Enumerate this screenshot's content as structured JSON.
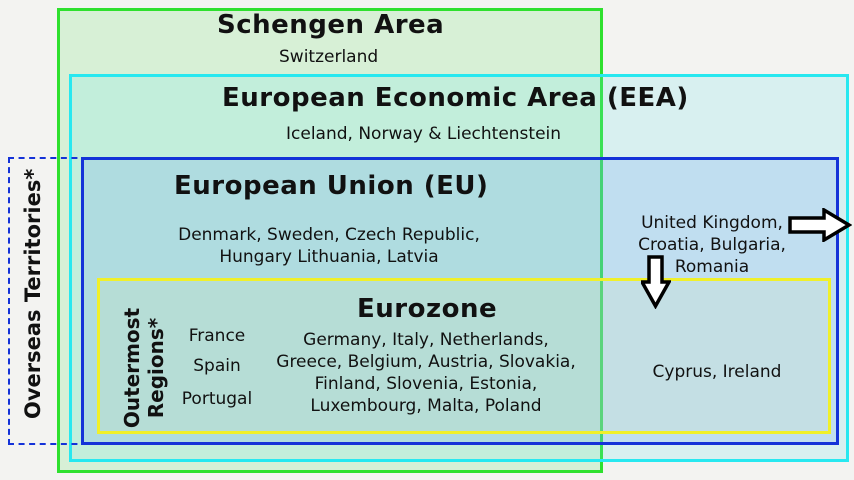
{
  "schengen": {
    "title": "Schengen Area",
    "members": "Switzerland",
    "color": "#2ee02e"
  },
  "eea": {
    "title": "European Economic Area (EEA)",
    "members": "Iceland, Norway & Liechtenstein",
    "color": "#27e8f0"
  },
  "eu": {
    "title": "European Union (EU)",
    "members_line1": "Denmark, Sweden, Czech Republic,",
    "members_line2": "Hungary Lithuania, Latvia",
    "non_schengen_line1": "United Kingdom,",
    "non_schengen_line2": "Croatia, Bulgaria,",
    "non_schengen_line3": "Romania",
    "color": "#1432d8"
  },
  "eurozone": {
    "title": "Eurozone",
    "members_line1": "Germany, Italy, Netherlands,",
    "members_line2": "Greece, Belgium, Austria, Slovakia,",
    "members_line3": "Finland, Slovenia, Estonia,",
    "members_line4": "Luxembourg, Malta, Poland",
    "non_schengen": "Cyprus, Ireland",
    "color": "#f0f02a"
  },
  "outermost": {
    "label_line1": "Outermost",
    "label_line2": "Regions*",
    "countries": [
      "France",
      "Spain",
      "Portugal"
    ]
  },
  "overseas": {
    "label": "Overseas Territories*"
  },
  "icons": {
    "exit_arrow": "arrow-right-icon",
    "join_arrow": "arrow-down-icon"
  }
}
